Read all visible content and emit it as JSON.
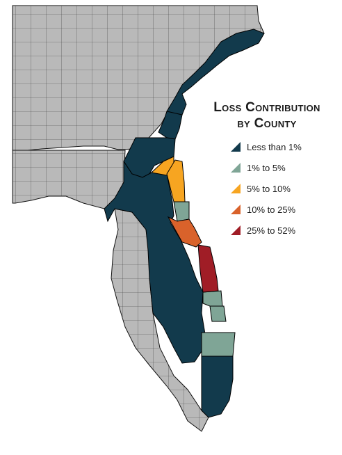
{
  "legend": {
    "title_line1": "Loss Contribution",
    "title_line2": "by County",
    "items": [
      {
        "label": "Less than 1%",
        "color": "#123a4c"
      },
      {
        "label": "1% to 5%",
        "color": "#7fa596"
      },
      {
        "label": "5% to 10%",
        "color": "#f7a521"
      },
      {
        "label": "10% to 25%",
        "color": "#d9622b"
      },
      {
        "label": "25% to 52%",
        "color": "#a01d26"
      }
    ]
  },
  "map": {
    "region": "Florida, Georgia and South Carolina coast",
    "base_county_color": "#b9b9b9",
    "border_color": "#111111"
  }
}
